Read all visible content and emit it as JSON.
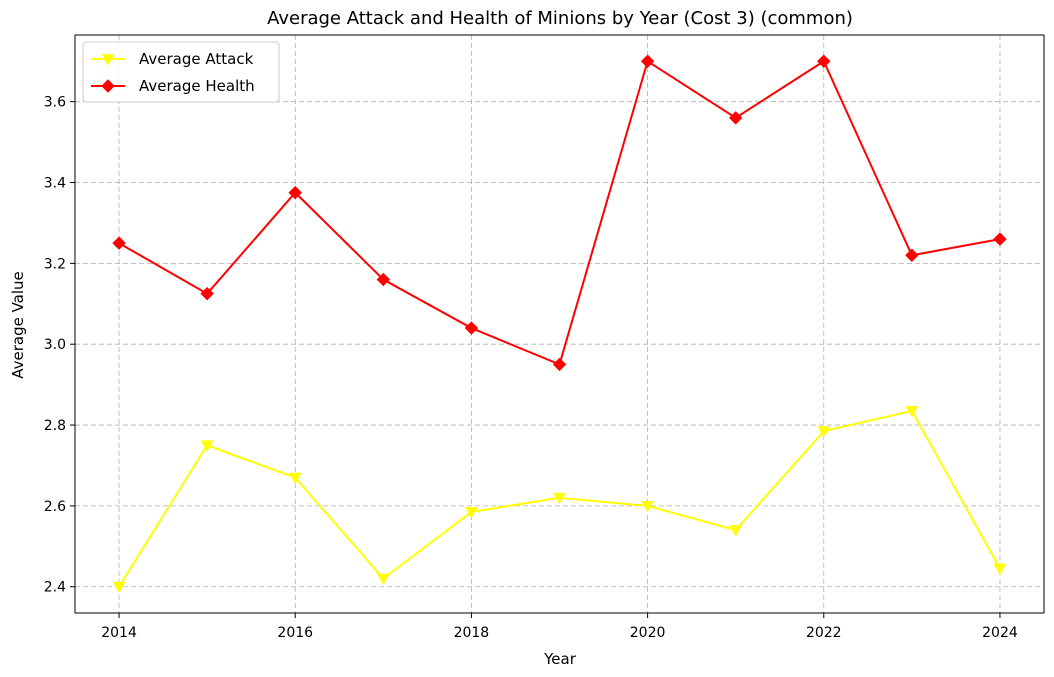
{
  "chart_data": {
    "type": "line",
    "title": "Average Attack and Health of Minions by Year (Cost 3) (common)",
    "xlabel": "Year",
    "ylabel": "Average Value",
    "x": [
      2014,
      2015,
      2016,
      2017,
      2018,
      2019,
      2020,
      2021,
      2022,
      2023,
      2024
    ],
    "x_ticks": [
      "2014",
      "2016",
      "2018",
      "2020",
      "2022",
      "2024"
    ],
    "y_ticks": [
      "2.4",
      "2.6",
      "2.8",
      "3.0",
      "3.2",
      "3.4",
      "3.6"
    ],
    "xlim": [
      2013.5,
      2024.5
    ],
    "ylim": [
      2.335,
      3.765
    ],
    "grid": true,
    "legend_position": "top-left",
    "series": [
      {
        "name": "Average Attack",
        "color": "#ffff00",
        "marker": "triangle-down",
        "values": [
          2.4,
          2.75,
          2.67,
          2.42,
          2.585,
          2.62,
          2.6,
          2.54,
          2.785,
          2.835,
          2.445
        ]
      },
      {
        "name": "Average Health",
        "color": "#ff0000",
        "marker": "diamond",
        "values": [
          3.25,
          3.125,
          3.375,
          3.16,
          3.04,
          2.95,
          3.7,
          3.56,
          3.7,
          3.22,
          3.26
        ]
      }
    ]
  }
}
